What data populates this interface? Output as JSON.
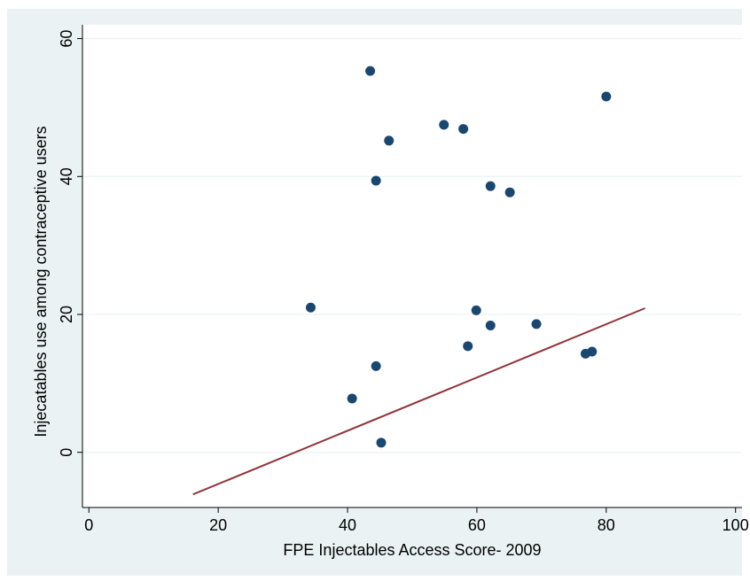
{
  "chart_data": {
    "type": "scatter",
    "title": "",
    "xlabel": "FPE Injectables Access Score- 2009",
    "ylabel": "Injecatables use among contraceptive users",
    "xlim": [
      -1,
      101
    ],
    "ylim": [
      -8,
      62
    ],
    "xticks": [
      0,
      20,
      40,
      60,
      80,
      100
    ],
    "yticks": [
      0,
      20,
      40,
      60
    ],
    "x_tick_labels": [
      "0",
      "20",
      "40",
      "60",
      "80",
      "100"
    ],
    "y_tick_labels": [
      "0",
      "20",
      "40",
      "60"
    ],
    "grid": true,
    "legend": "none",
    "points": [
      {
        "x": 43.5,
        "y": 55.3
      },
      {
        "x": 80.0,
        "y": 51.6
      },
      {
        "x": 54.9,
        "y": 47.5
      },
      {
        "x": 57.9,
        "y": 46.9
      },
      {
        "x": 46.4,
        "y": 45.2
      },
      {
        "x": 44.4,
        "y": 39.4
      },
      {
        "x": 62.1,
        "y": 38.6
      },
      {
        "x": 65.1,
        "y": 37.7
      },
      {
        "x": 34.3,
        "y": 21.0
      },
      {
        "x": 59.9,
        "y": 20.6
      },
      {
        "x": 69.2,
        "y": 18.6
      },
      {
        "x": 62.1,
        "y": 18.4
      },
      {
        "x": 58.6,
        "y": 15.4
      },
      {
        "x": 77.8,
        "y": 14.6
      },
      {
        "x": 76.8,
        "y": 14.3
      },
      {
        "x": 44.4,
        "y": 12.5
      },
      {
        "x": 40.7,
        "y": 7.8
      },
      {
        "x": 45.2,
        "y": 1.4
      }
    ],
    "fit_line": {
      "x": [
        16.1,
        86.0
      ],
      "y": [
        -6.1,
        20.9
      ]
    },
    "colors": {
      "outer_background": "#eaf2f3",
      "plot_background": "#ffffff",
      "marker": "#1a476f",
      "fit_line": "#90353b",
      "grid": "#eaf2f3"
    }
  }
}
